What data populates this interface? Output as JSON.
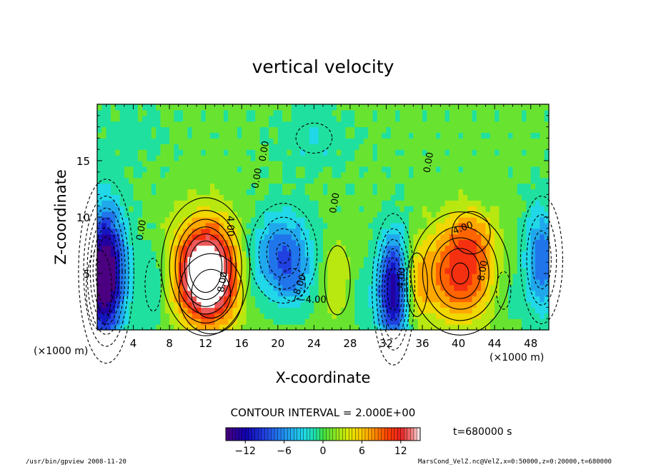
{
  "chart_data": {
    "type": "heatmap",
    "title": "vertical velocity",
    "xlabel": "X-coordinate",
    "ylabel": "Z-coordinate",
    "x_unit_left": "(×1000 m)",
    "x_unit_right": "(×1000 m)",
    "xlim": [
      0,
      50
    ],
    "ylim": [
      0,
      20
    ],
    "x_ticks": [
      "4",
      "8",
      "12",
      "16",
      "20",
      "24",
      "28",
      "32",
      "36",
      "40",
      "44",
      "48"
    ],
    "x_tick_values": [
      4,
      8,
      12,
      16,
      20,
      24,
      28,
      32,
      36,
      40,
      44,
      48
    ],
    "y_ticks": [
      "5",
      "10",
      "15"
    ],
    "y_tick_values": [
      5,
      10,
      15
    ],
    "contour_interval_text": "CONTOUR INTERVAL = 2.000E+00",
    "time_text": "t=680000 s",
    "colorbar": {
      "range": [
        -15,
        15
      ],
      "ticks": [
        "−12",
        "−6",
        "0",
        "6",
        "12"
      ],
      "tick_values": [
        -12,
        -6,
        0,
        6,
        12
      ]
    },
    "contour_labels": [
      {
        "text": "4.00",
        "x": 14.4,
        "z": 9.2,
        "rot": 90
      },
      {
        "text": "8.00",
        "x": 14.2,
        "z": 4.2,
        "rot": -80
      },
      {
        "text": "0.00",
        "x": 5.2,
        "z": 8.8,
        "rot": -80
      },
      {
        "text": "0.00",
        "x": 18.0,
        "z": 13.4,
        "rot": -80
      },
      {
        "text": "0.00",
        "x": 18.8,
        "z": 15.8,
        "rot": -80
      },
      {
        "text": "0.00",
        "x": 26.6,
        "z": 11.2,
        "rot": -80
      },
      {
        "text": "−8.00",
        "x": 22.6,
        "z": 3.6,
        "rot": -70
      },
      {
        "text": "−4.00",
        "x": 23.8,
        "z": 2.4,
        "rot": 0
      },
      {
        "text": "4.00",
        "x": 34.0,
        "z": 4.6,
        "rot": -85
      },
      {
        "text": "0.00",
        "x": 37.0,
        "z": 14.8,
        "rot": -80
      },
      {
        "text": "4.00",
        "x": 40.6,
        "z": 8.8,
        "rot": -20
      },
      {
        "text": "8.00",
        "x": 43.0,
        "z": 5.2,
        "rot": -80
      }
    ],
    "blobs": [
      {
        "x": 1.0,
        "z": 5.2,
        "sx": 1.5,
        "sz": 4.0,
        "amp": -16
      },
      {
        "x": 0.2,
        "z": 3.6,
        "sx": 1.2,
        "sz": 3.0,
        "amp": -4
      },
      {
        "x": 12.0,
        "z": 5.6,
        "sx": 2.4,
        "sz": 3.0,
        "amp": 16
      },
      {
        "x": 12.6,
        "z": 3.2,
        "sx": 2.4,
        "sz": 2.4,
        "amp": 6
      },
      {
        "x": 20.6,
        "z": 6.8,
        "sx": 2.2,
        "sz": 2.6,
        "amp": -8.5
      },
      {
        "x": 21.6,
        "z": 4.0,
        "sx": 1.6,
        "sz": 1.6,
        "amp": -3
      },
      {
        "x": 26.6,
        "z": 4.4,
        "sx": 1.2,
        "sz": 2.6,
        "amp": 4
      },
      {
        "x": 32.8,
        "z": 3.6,
        "sx": 1.2,
        "sz": 3.4,
        "amp": -14
      },
      {
        "x": 35.4,
        "z": 4.0,
        "sx": 1.0,
        "sz": 2.4,
        "amp": 4
      },
      {
        "x": 40.2,
        "z": 5.0,
        "sx": 3.0,
        "sz": 3.0,
        "amp": 10.5
      },
      {
        "x": 41.4,
        "z": 8.6,
        "sx": 1.8,
        "sz": 1.6,
        "amp": 4
      },
      {
        "x": 49.2,
        "z": 6.2,
        "sx": 1.4,
        "sz": 3.4,
        "amp": -8
      },
      {
        "x": 6.2,
        "z": 4.0,
        "sx": 1.0,
        "sz": 2.6,
        "amp": -3
      },
      {
        "x": 29.0,
        "z": 3.0,
        "sx": 1.6,
        "sz": 2.0,
        "amp": -2
      },
      {
        "x": 17.2,
        "z": 5.0,
        "sx": 1.0,
        "sz": 2.4,
        "amp": -2
      },
      {
        "x": 45.0,
        "z": 3.5,
        "sx": 1.2,
        "sz": 2.5,
        "amp": -2.5
      },
      {
        "x": 24.0,
        "z": 17.0,
        "sx": 3.0,
        "sz": 2.0,
        "amp": -2.5
      },
      {
        "x": 3.5,
        "z": 17.5,
        "sx": 3.0,
        "sz": 2.0,
        "amp": -1.5
      }
    ]
  },
  "footer": {
    "left": "/usr/bin/gpview  2008-11-20",
    "right": "MarsCond_VelZ.nc@VelZ,x=0:50000,z=0:20000,t=680000"
  }
}
